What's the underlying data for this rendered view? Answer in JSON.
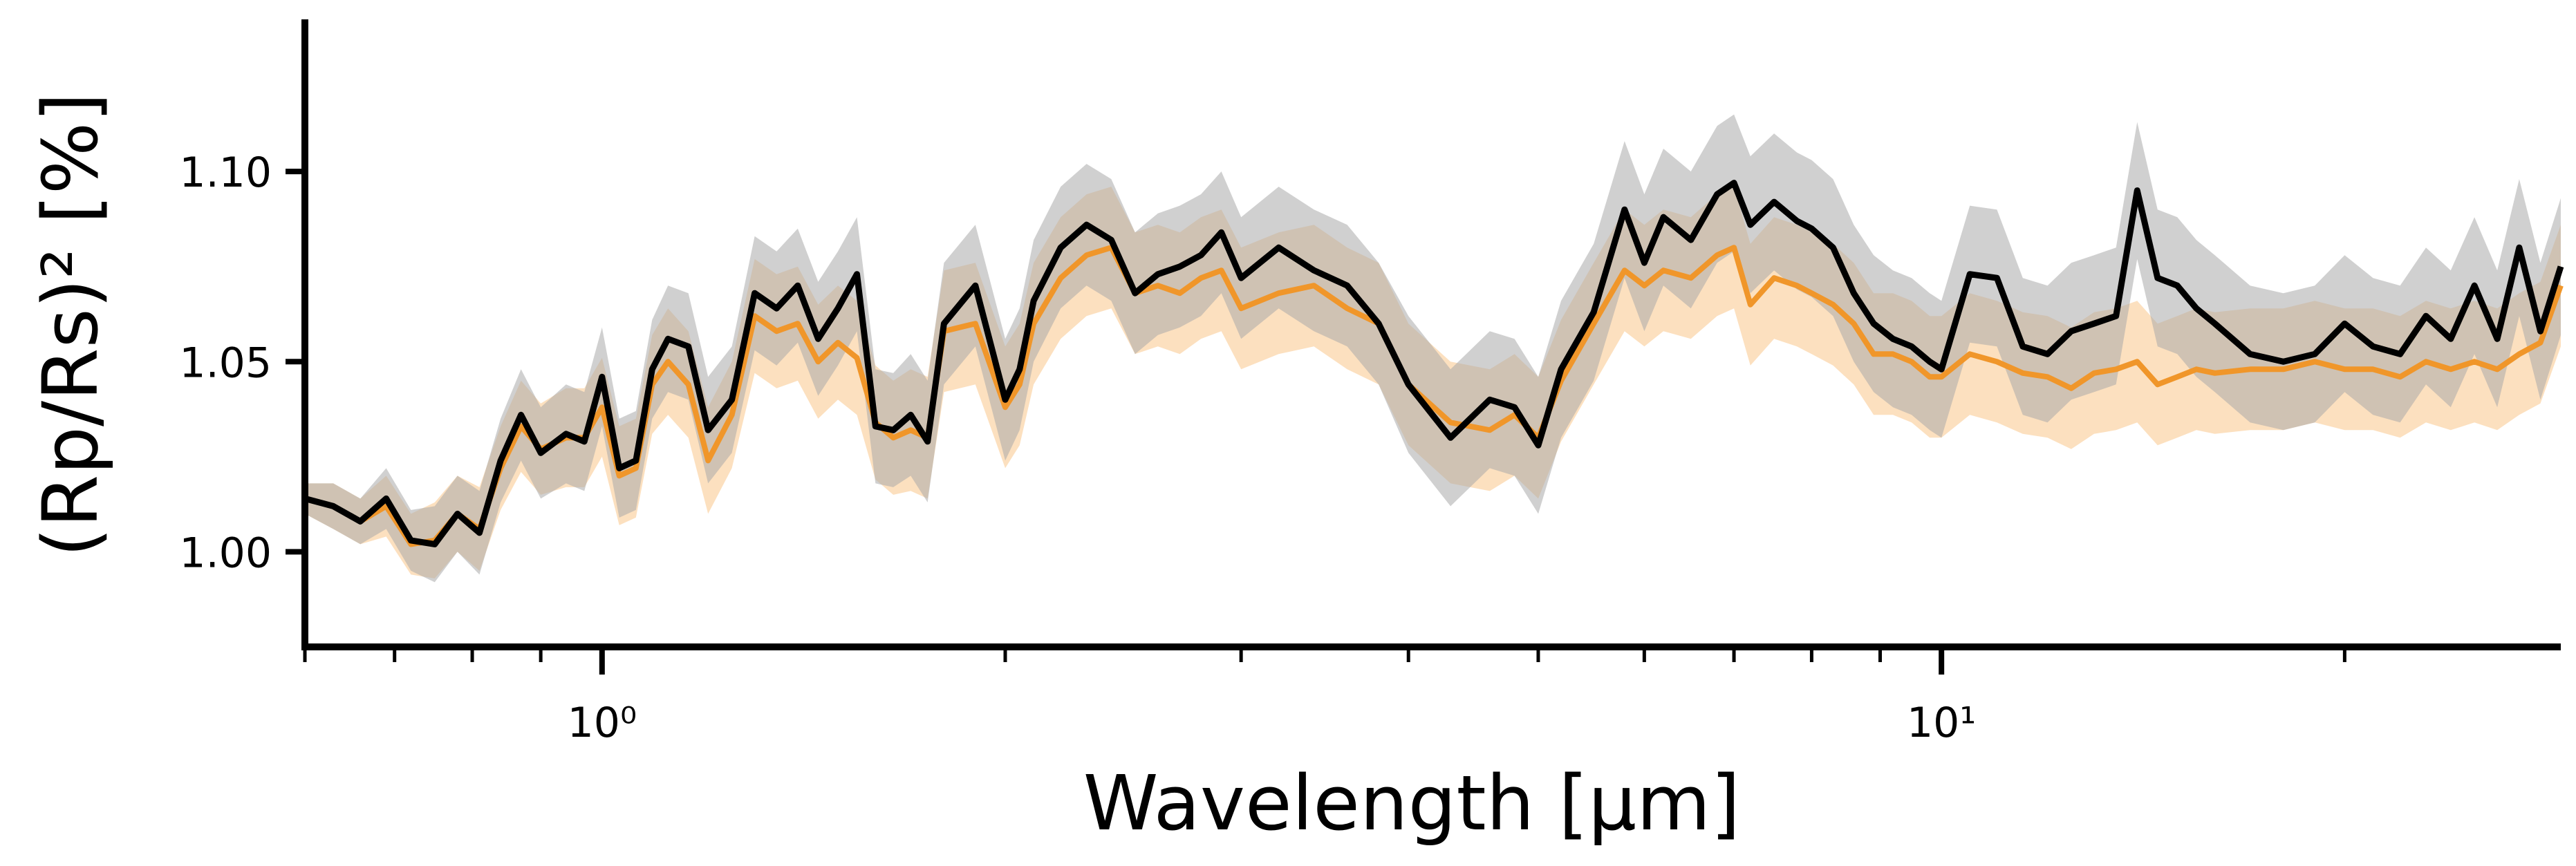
{
  "chart_data": {
    "type": "line",
    "xscale": "log",
    "xlim": [
      0.6,
      29.0
    ],
    "ylim": [
      0.975,
      1.14
    ],
    "grid": false,
    "xlabel": "Wavelength [μm]",
    "ylabel": "(Rp/Rs)² [%]",
    "xticks_major": [
      {
        "value": 1,
        "label": "10⁰"
      },
      {
        "value": 10,
        "label": "10¹"
      }
    ],
    "yticks": [
      {
        "value": 1.0,
        "label": "1.00"
      },
      {
        "value": 1.05,
        "label": "1.05"
      },
      {
        "value": 1.1,
        "label": "1.10"
      }
    ],
    "colors": {
      "black_line": "#000000",
      "orange_line": "#f0962a",
      "orange_band": "#f9c78a",
      "gray_band": "#a9a9a9"
    },
    "series": [
      {
        "x": [
          0.6,
          0.63,
          0.66,
          0.69,
          0.72,
          0.75,
          0.78,
          0.81,
          0.84,
          0.87,
          0.9,
          0.94,
          0.97,
          1.0,
          1.03,
          1.06,
          1.09,
          1.12,
          1.16,
          1.2,
          1.25,
          1.3,
          1.35,
          1.4,
          1.45,
          1.5,
          1.55,
          1.6,
          1.65,
          1.7,
          1.75,
          1.8,
          1.9,
          2.0,
          2.05,
          2.1,
          2.2,
          2.3,
          2.4,
          2.5,
          2.6,
          2.7,
          2.8,
          2.9,
          3.0,
          3.2,
          3.4,
          3.6,
          3.8,
          4.0,
          4.3,
          4.6,
          4.8,
          5.0,
          5.2,
          5.5,
          5.8,
          6.0,
          6.2,
          6.5,
          6.8,
          7.0,
          7.2,
          7.5,
          7.8,
          8.0,
          8.3,
          8.6,
          8.9,
          9.2,
          9.5,
          9.8,
          10.0,
          10.5,
          11.0,
          11.5,
          12.0,
          12.5,
          13.0,
          13.5,
          14.0,
          14.5,
          15.0,
          15.5,
          16.0,
          17.0,
          18.0,
          19.0,
          20.0,
          21.0,
          22.0,
          23.0,
          24.0,
          25.0,
          26.0,
          27.0,
          28.0,
          29.0
        ],
        "y": [
          1.014,
          1.012,
          1.008,
          1.012,
          1.002,
          1.003,
          1.01,
          1.006,
          1.022,
          1.033,
          1.027,
          1.03,
          1.03,
          1.038,
          1.02,
          1.022,
          1.044,
          1.05,
          1.044,
          1.024,
          1.036,
          1.062,
          1.058,
          1.06,
          1.05,
          1.055,
          1.051,
          1.034,
          1.03,
          1.032,
          1.03,
          1.058,
          1.06,
          1.038,
          1.044,
          1.06,
          1.072,
          1.078,
          1.08,
          1.068,
          1.07,
          1.068,
          1.072,
          1.074,
          1.064,
          1.068,
          1.07,
          1.064,
          1.06,
          1.044,
          1.034,
          1.032,
          1.036,
          1.03,
          1.045,
          1.06,
          1.074,
          1.07,
          1.074,
          1.072,
          1.078,
          1.08,
          1.065,
          1.072,
          1.07,
          1.068,
          1.065,
          1.06,
          1.052,
          1.052,
          1.05,
          1.046,
          1.046,
          1.052,
          1.05,
          1.047,
          1.046,
          1.043,
          1.047,
          1.048,
          1.05,
          1.044,
          1.046,
          1.048,
          1.047,
          1.048,
          1.048,
          1.05,
          1.048,
          1.048,
          1.046,
          1.05,
          1.048,
          1.05,
          1.048,
          1.052,
          1.055,
          1.07
        ],
        "err": [
          0.004,
          0.006,
          0.006,
          0.008,
          0.008,
          0.01,
          0.01,
          0.011,
          0.011,
          0.012,
          0.012,
          0.013,
          0.013,
          0.013,
          0.013,
          0.013,
          0.013,
          0.014,
          0.014,
          0.014,
          0.014,
          0.015,
          0.015,
          0.015,
          0.015,
          0.015,
          0.015,
          0.015,
          0.015,
          0.016,
          0.016,
          0.016,
          0.016,
          0.016,
          0.016,
          0.016,
          0.016,
          0.016,
          0.016,
          0.016,
          0.016,
          0.016,
          0.016,
          0.016,
          0.016,
          0.016,
          0.016,
          0.016,
          0.016,
          0.016,
          0.016,
          0.016,
          0.016,
          0.016,
          0.016,
          0.016,
          0.016,
          0.016,
          0.016,
          0.016,
          0.016,
          0.016,
          0.016,
          0.016,
          0.016,
          0.016,
          0.016,
          0.016,
          0.016,
          0.016,
          0.016,
          0.016,
          0.016,
          0.016,
          0.016,
          0.016,
          0.016,
          0.016,
          0.016,
          0.016,
          0.016,
          0.016,
          0.016,
          0.016,
          0.016,
          0.016,
          0.016,
          0.016,
          0.016,
          0.016,
          0.016,
          0.016,
          0.016,
          0.016,
          0.016,
          0.016,
          0.016,
          0.016
        ],
        "color": "#f0962a",
        "band_color": "#f9c78a"
      },
      {
        "x": [
          0.6,
          0.63,
          0.66,
          0.69,
          0.72,
          0.75,
          0.78,
          0.81,
          0.84,
          0.87,
          0.9,
          0.94,
          0.97,
          1.0,
          1.03,
          1.06,
          1.09,
          1.12,
          1.16,
          1.2,
          1.25,
          1.3,
          1.35,
          1.4,
          1.45,
          1.5,
          1.55,
          1.6,
          1.65,
          1.7,
          1.75,
          1.8,
          1.9,
          2.0,
          2.05,
          2.1,
          2.2,
          2.3,
          2.4,
          2.5,
          2.6,
          2.7,
          2.8,
          2.9,
          3.0,
          3.2,
          3.4,
          3.6,
          3.8,
          4.0,
          4.3,
          4.6,
          4.8,
          5.0,
          5.2,
          5.5,
          5.8,
          6.0,
          6.2,
          6.5,
          6.8,
          7.0,
          7.2,
          7.5,
          7.8,
          8.0,
          8.3,
          8.6,
          8.9,
          9.2,
          9.5,
          9.8,
          10.0,
          10.5,
          11.0,
          11.5,
          12.0,
          12.5,
          13.0,
          13.5,
          14.0,
          14.5,
          15.0,
          15.5,
          16.0,
          17.0,
          18.0,
          19.0,
          20.0,
          21.0,
          22.0,
          23.0,
          24.0,
          25.0,
          26.0,
          27.0,
          28.0,
          29.0
        ],
        "y": [
          1.014,
          1.012,
          1.008,
          1.014,
          1.003,
          1.002,
          1.01,
          1.005,
          1.024,
          1.036,
          1.026,
          1.031,
          1.029,
          1.046,
          1.022,
          1.024,
          1.048,
          1.056,
          1.054,
          1.032,
          1.04,
          1.068,
          1.064,
          1.07,
          1.056,
          1.064,
          1.073,
          1.033,
          1.032,
          1.036,
          1.029,
          1.06,
          1.07,
          1.04,
          1.048,
          1.066,
          1.08,
          1.086,
          1.082,
          1.068,
          1.073,
          1.075,
          1.078,
          1.084,
          1.072,
          1.08,
          1.074,
          1.07,
          1.06,
          1.044,
          1.03,
          1.04,
          1.038,
          1.028,
          1.048,
          1.063,
          1.09,
          1.076,
          1.088,
          1.082,
          1.094,
          1.097,
          1.086,
          1.092,
          1.087,
          1.085,
          1.08,
          1.068,
          1.06,
          1.056,
          1.054,
          1.05,
          1.048,
          1.073,
          1.072,
          1.054,
          1.052,
          1.058,
          1.06,
          1.062,
          1.095,
          1.072,
          1.07,
          1.064,
          1.06,
          1.052,
          1.05,
          1.052,
          1.06,
          1.054,
          1.052,
          1.062,
          1.056,
          1.07,
          1.056,
          1.08,
          1.058,
          1.075
        ],
        "err": [
          0.004,
          0.006,
          0.006,
          0.008,
          0.008,
          0.01,
          0.01,
          0.011,
          0.011,
          0.012,
          0.012,
          0.013,
          0.013,
          0.013,
          0.013,
          0.013,
          0.013,
          0.014,
          0.014,
          0.014,
          0.014,
          0.015,
          0.015,
          0.015,
          0.015,
          0.015,
          0.015,
          0.015,
          0.015,
          0.016,
          0.016,
          0.016,
          0.016,
          0.016,
          0.016,
          0.016,
          0.016,
          0.016,
          0.016,
          0.016,
          0.016,
          0.016,
          0.016,
          0.016,
          0.016,
          0.016,
          0.016,
          0.016,
          0.016,
          0.018,
          0.018,
          0.018,
          0.018,
          0.018,
          0.018,
          0.018,
          0.018,
          0.018,
          0.018,
          0.018,
          0.018,
          0.018,
          0.018,
          0.018,
          0.018,
          0.018,
          0.018,
          0.018,
          0.018,
          0.018,
          0.018,
          0.018,
          0.018,
          0.018,
          0.018,
          0.018,
          0.018,
          0.018,
          0.018,
          0.018,
          0.018,
          0.018,
          0.018,
          0.018,
          0.018,
          0.018,
          0.018,
          0.018,
          0.018,
          0.018,
          0.018,
          0.018,
          0.018,
          0.018,
          0.018,
          0.018,
          0.018,
          0.018
        ],
        "color": "#000000",
        "band_color": "#a9a9a9"
      }
    ]
  }
}
